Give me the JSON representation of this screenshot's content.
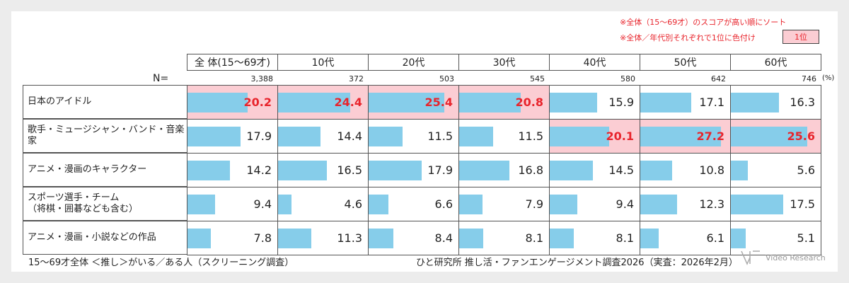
{
  "notes": {
    "sort": "※全体（15～69才）のスコアが高い順にソート",
    "color": "※全体／年代別それぞれで1位に色付け",
    "legend": "1位"
  },
  "n_label": "N=",
  "unit": "(%)",
  "footer": {
    "left": "15～69才全体 ＜推し＞がいる／ある人（スクリーニング調査）",
    "right": "ひと研究所 推し活・ファンエンゲージメント調査2026（実査：2026年2月）",
    "logo": "Video Research"
  },
  "colors": {
    "bar": "#86cdea",
    "highlight": "#fbcdd3",
    "highlight_text": "#e8242c"
  },
  "chart_data": {
    "type": "table",
    "columns": [
      "全 体(15～69才)",
      "10代",
      "20代",
      "30代",
      "40代",
      "50代",
      "60代"
    ],
    "n": [
      "3,388",
      "372",
      "503",
      "545",
      "580",
      "642",
      "746"
    ],
    "rows": [
      {
        "label": "日本のアイドル",
        "values": [
          20.2,
          24.4,
          25.4,
          20.8,
          15.9,
          17.1,
          16.3
        ]
      },
      {
        "label": "歌手・ミュージシャン・バンド・音楽家",
        "values": [
          17.9,
          14.4,
          11.5,
          11.5,
          20.1,
          27.2,
          25.6
        ]
      },
      {
        "label": "アニメ・漫画のキャラクター",
        "values": [
          14.2,
          16.5,
          17.9,
          16.8,
          14.5,
          10.8,
          5.6
        ]
      },
      {
        "label": "スポーツ選手・チーム\n（将棋・囲碁なども含む）",
        "values": [
          9.4,
          4.6,
          6.6,
          7.9,
          9.4,
          12.3,
          17.5
        ]
      },
      {
        "label": "アニメ・漫画・小説などの作品",
        "values": [
          7.8,
          11.3,
          8.4,
          8.1,
          8.1,
          6.1,
          5.1
        ]
      }
    ],
    "bar_max": 30
  }
}
